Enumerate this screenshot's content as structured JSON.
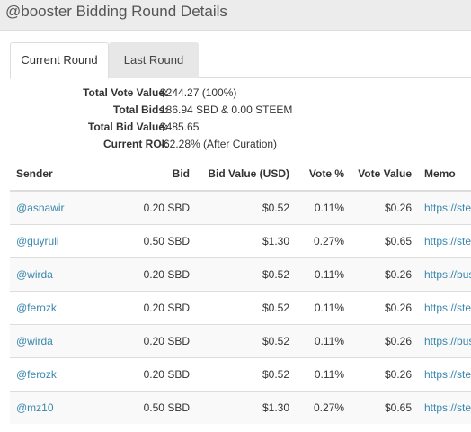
{
  "header": {
    "title": "@booster Bidding Round Details"
  },
  "tabs": [
    {
      "label": "Current Round",
      "active": true
    },
    {
      "label": "Last Round",
      "active": false
    }
  ],
  "summary": [
    {
      "label": "Total Vote Value:",
      "value": "$244.27 (100%)"
    },
    {
      "label": "Total Bids:",
      "value": "186.94 SBD & 0.00 STEEM"
    },
    {
      "label": "Total Bid Value:",
      "value": "$485.65"
    },
    {
      "label": "Current ROI:",
      "value": "-62.28% (After Curation)"
    }
  ],
  "table": {
    "headers": [
      "Sender",
      "Bid",
      "Bid Value (USD)",
      "Vote %",
      "Vote Value",
      "Memo"
    ],
    "rows": [
      {
        "sender": "@asnawir",
        "bid": "0.20 SBD",
        "bid_value": "$0.52",
        "vote_pct": "0.11%",
        "vote_value": "$0.26",
        "memo": "https://stee"
      },
      {
        "sender": "@guyruli",
        "bid": "0.50 SBD",
        "bid_value": "$1.30",
        "vote_pct": "0.27%",
        "vote_value": "$0.65",
        "memo": "https://stee"
      },
      {
        "sender": "@wirda",
        "bid": "0.20 SBD",
        "bid_value": "$0.52",
        "vote_pct": "0.11%",
        "vote_value": "$0.26",
        "memo": "https://busy"
      },
      {
        "sender": "@ferozk",
        "bid": "0.20 SBD",
        "bid_value": "$0.52",
        "vote_pct": "0.11%",
        "vote_value": "$0.26",
        "memo": "https://stee"
      },
      {
        "sender": "@wirda",
        "bid": "0.20 SBD",
        "bid_value": "$0.52",
        "vote_pct": "0.11%",
        "vote_value": "$0.26",
        "memo": "https://busy"
      },
      {
        "sender": "@ferozk",
        "bid": "0.20 SBD",
        "bid_value": "$0.52",
        "vote_pct": "0.11%",
        "vote_value": "$0.26",
        "memo": "https://stee"
      },
      {
        "sender": "@mz10",
        "bid": "0.50 SBD",
        "bid_value": "$1.30",
        "vote_pct": "0.27%",
        "vote_value": "$0.65",
        "memo": "https://stee"
      }
    ]
  },
  "colors": {
    "link": "#3a87ad",
    "header_bg": "#ececec",
    "tab_inactive_bg": "#e7e7e7"
  }
}
